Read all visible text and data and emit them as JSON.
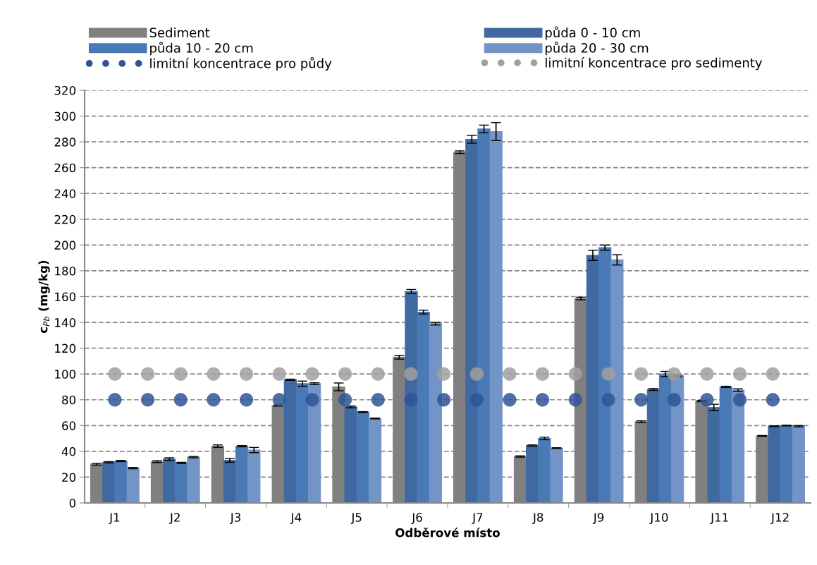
{
  "chart_data": {
    "type": "bar",
    "xlabel": "Odběrové místo",
    "ylabel": "c$_{Pb}$ (mg/kg)",
    "categories": [
      "J1",
      "J2",
      "J3",
      "J4",
      "J5",
      "J6",
      "J7",
      "J8",
      "J9",
      "J10",
      "J11",
      "J12"
    ],
    "ylim": [
      0,
      320
    ],
    "yticks": [
      0,
      20,
      40,
      60,
      80,
      100,
      120,
      140,
      160,
      180,
      200,
      220,
      240,
      260,
      280,
      300,
      320
    ],
    "grid": "y",
    "legend": "top",
    "series": [
      {
        "name": "Sediment",
        "color": "#808080",
        "values": [
          30,
          32,
          44,
          75.5,
          90,
          113,
          272,
          36,
          158.5,
          63,
          79,
          52
        ],
        "errors": [
          0.7,
          0.7,
          1,
          0.5,
          3,
          1.5,
          1,
          0.5,
          1,
          0.7,
          0.5,
          0.3
        ]
      },
      {
        "name": "půda 0 - 10 cm",
        "color": "#3f69a0",
        "values": [
          31.5,
          34,
          33,
          95.5,
          74.5,
          164,
          282,
          44.5,
          192,
          88,
          74,
          59.5
        ],
        "errors": [
          0.5,
          1,
          1.5,
          0.5,
          0.7,
          1.5,
          3,
          0.5,
          4,
          0.7,
          2.5,
          0.3
        ]
      },
      {
        "name": "půda 10 - 20 cm",
        "color": "#4a7ab5",
        "values": [
          32.5,
          31,
          44,
          92.5,
          70.5,
          148,
          290,
          50,
          198,
          100,
          90,
          60
        ],
        "errors": [
          0.5,
          0.5,
          0.5,
          2,
          0.3,
          1.5,
          3,
          1,
          2,
          2,
          0.5,
          0.3
        ]
      },
      {
        "name": "půda 20 - 30 cm",
        "color": "#7294c6",
        "values": [
          27,
          35.5,
          41,
          92.5,
          65.5,
          139,
          288,
          42.5,
          188.5,
          98.5,
          87.5,
          59.5
        ],
        "errors": [
          0.5,
          0.5,
          2,
          0.7,
          0.3,
          1,
          7,
          0.3,
          4,
          0.7,
          1,
          0.5
        ]
      },
      {
        "name": "limitní koncentrace pro půdy",
        "type": "line",
        "line_style": "dotted",
        "color": "#2f5597",
        "values": [
          80,
          80,
          80,
          80,
          80,
          80,
          80,
          80,
          80,
          80,
          80,
          80
        ]
      },
      {
        "name": "limitní koncentrace pro sedimenty",
        "type": "line",
        "line_style": "dotted",
        "color": "#a0a0a0",
        "values": [
          100,
          100,
          100,
          100,
          100,
          100,
          100,
          100,
          100,
          100,
          100,
          100
        ]
      }
    ]
  }
}
